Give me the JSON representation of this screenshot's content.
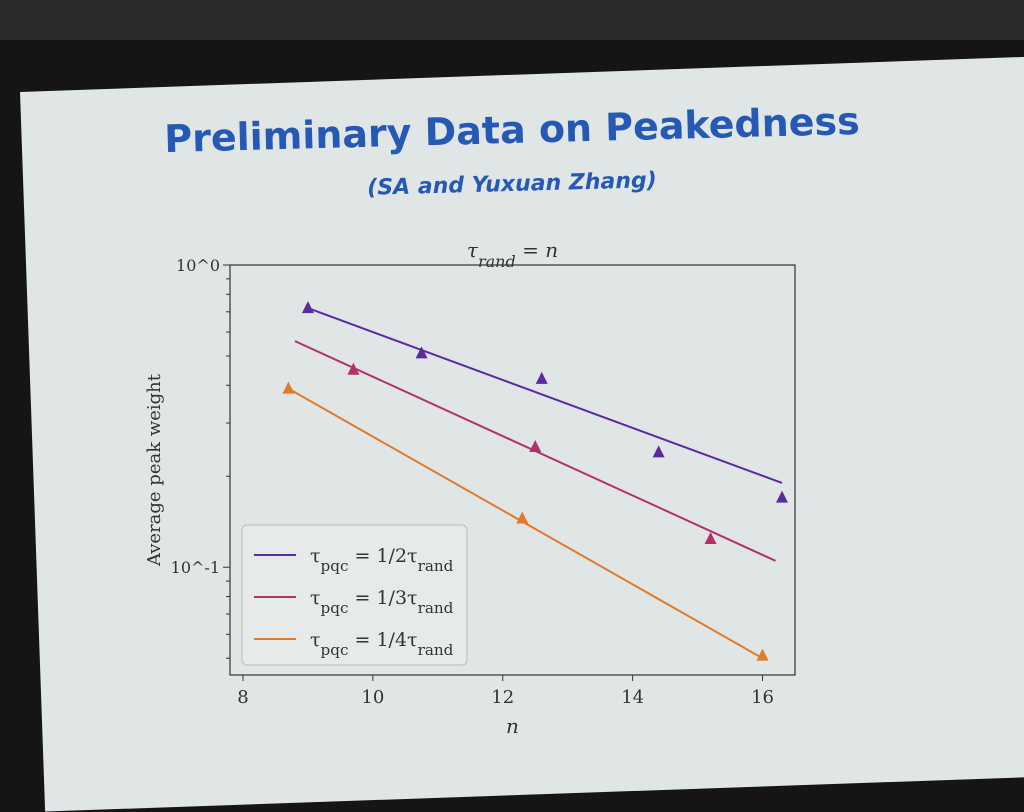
{
  "slide": {
    "title": "Preliminary Data on Peakedness",
    "subtitle": "(SA and Yuxuan Zhang)"
  },
  "chart_data": {
    "type": "line",
    "title": "τrand = n",
    "xlabel": "n",
    "ylabel": "Average peak weight",
    "xlim": [
      7.8,
      16.5
    ],
    "ylim": [
      0.044,
      1.0
    ],
    "yscale": "log",
    "xticks": [
      8,
      10,
      12,
      14,
      16
    ],
    "yticks": [
      {
        "value": 1.0,
        "label": "10^0"
      },
      {
        "value": 0.1,
        "label": "10^-1"
      }
    ],
    "grid": false,
    "legend_position": "lower-left",
    "series": [
      {
        "name": "τpqc = 1/2τrand",
        "color": "#5a2aa0",
        "points": {
          "x": [
            9.0,
            10.75,
            12.6,
            14.4,
            16.3
          ],
          "y": [
            0.72,
            0.51,
            0.42,
            0.24,
            0.17
          ]
        },
        "fit": {
          "x": [
            9.0,
            16.3
          ],
          "y": [
            0.72,
            0.19
          ]
        }
      },
      {
        "name": "τpqc = 1/3τrand",
        "color": "#b3306c",
        "points": {
          "x": [
            9.7,
            12.5,
            15.2
          ],
          "y": [
            0.45,
            0.25,
            0.124
          ]
        },
        "fit": {
          "x": [
            8.8,
            16.2
          ],
          "y": [
            0.56,
            0.105
          ]
        }
      },
      {
        "name": "τpqc = 1/4τrand",
        "color": "#e27a2c",
        "points": {
          "x": [
            8.7,
            12.3,
            16.0
          ],
          "y": [
            0.39,
            0.145,
            0.051
          ]
        },
        "fit": {
          "x": [
            8.7,
            16.0
          ],
          "y": [
            0.39,
            0.05
          ]
        }
      }
    ]
  }
}
